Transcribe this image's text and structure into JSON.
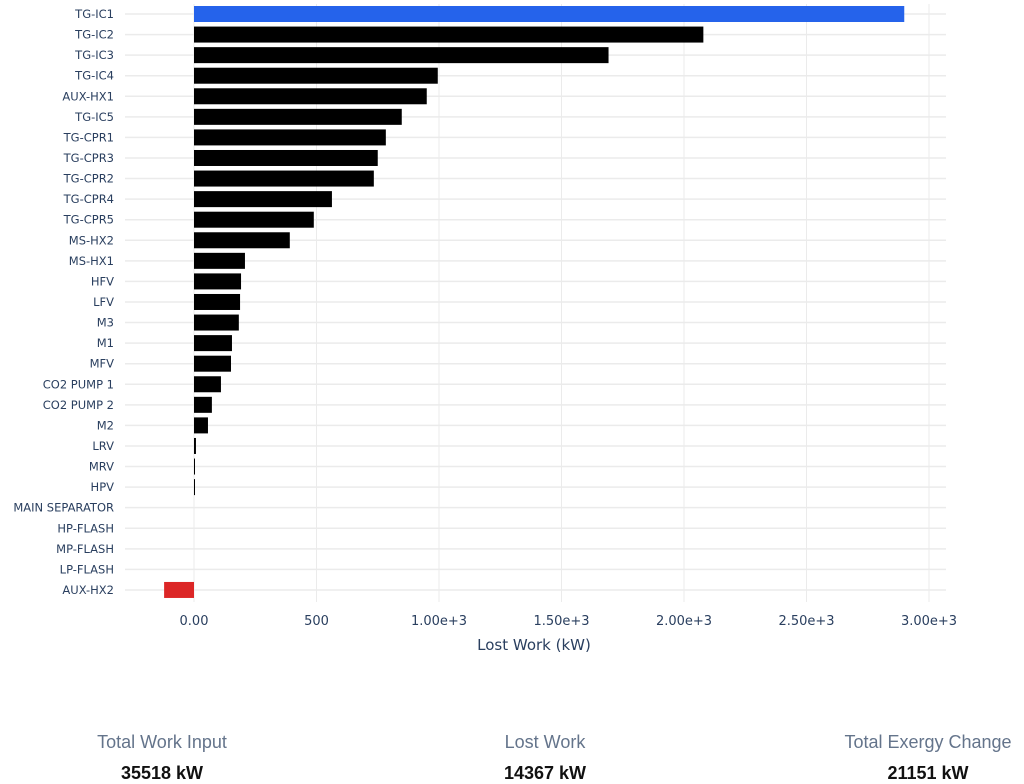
{
  "chart_data": {
    "type": "bar",
    "orientation": "horizontal",
    "categories": [
      "TG-IC1",
      "TG-IC2",
      "TG-IC3",
      "TG-IC4",
      "AUX-HX1",
      "TG-IC5",
      "TG-CPR1",
      "TG-CPR3",
      "TG-CPR2",
      "TG-CPR4",
      "TG-CPR5",
      "MS-HX2",
      "MS-HX1",
      "HFV",
      "LFV",
      "M3",
      "M1",
      "MFV",
      "CO2 PUMP 1",
      "CO2 PUMP 2",
      "M2",
      "LRV",
      "MRV",
      "HPV",
      "MAIN SEPARATOR",
      "HP-FLASH",
      "MP-FLASH",
      "LP-FLASH",
      "AUX-HX2"
    ],
    "values": [
      2899,
      2079,
      1692,
      995,
      950,
      848,
      783,
      750,
      734,
      563,
      489,
      391,
      208,
      192,
      188,
      183,
      155,
      151,
      110,
      73,
      57,
      8,
      4,
      2,
      0,
      0,
      0,
      0,
      -122
    ],
    "xlabel": "Lost Work (kW)",
    "ylabel": "",
    "xlim": [
      -250,
      3070
    ],
    "xticks": [
      0,
      500,
      1000,
      1500,
      2000,
      2500,
      3000
    ],
    "xtick_labels": [
      "0.00",
      "500",
      "1.00e+3",
      "1.50e+3",
      "2.00e+3",
      "2.50e+3",
      "3.00e+3"
    ],
    "grid": true,
    "colors": {
      "highlight": "#2563eb",
      "default": "#000000",
      "negative": "#dc2626",
      "grid": "#ebebeb"
    }
  },
  "summary": [
    {
      "label": "Total Work Input",
      "value": "35518 kW"
    },
    {
      "label": "Lost Work",
      "value": "14367 kW"
    },
    {
      "label": "Total Exergy Change",
      "value": "21151 kW"
    }
  ]
}
